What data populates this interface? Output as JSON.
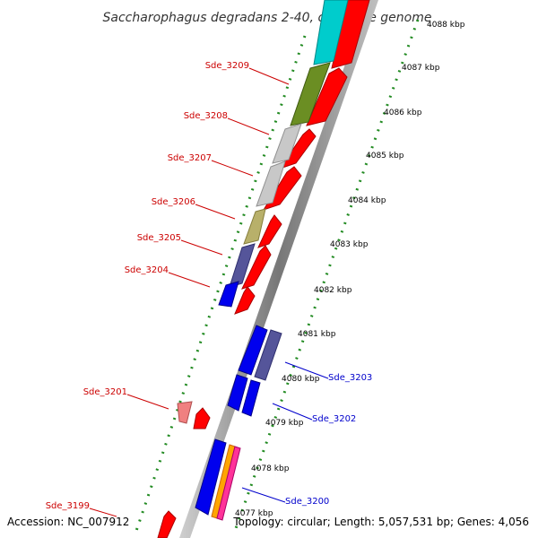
{
  "title": "Saccharophagus degradans 2-40, complete genome",
  "footer": {
    "accession": "Accession: NC_007912",
    "summary": "Topology: circular; Length: 5,057,531 bp; Genes: 4,056"
  },
  "ticks": [
    "4088 kbp",
    "4087 kbp",
    "4086 kbp",
    "4085 kbp",
    "4084 kbp",
    "4083 kbp",
    "4082 kbp",
    "4081 kbp",
    "4080 kbp",
    "4079 kbp",
    "4078 kbp",
    "4077 kbp"
  ],
  "gene_labels": {
    "left": [
      "Sde_3209",
      "Sde_3208",
      "Sde_3207",
      "Sde_3206",
      "Sde_3205",
      "Sde_3204",
      "Sde_3201",
      "Sde_3199"
    ],
    "right": [
      "Sde_3203",
      "Sde_3202",
      "Sde_3200"
    ]
  },
  "colors": {
    "forward_label": "#cc0000",
    "reverse_label": "#0000cc",
    "cds_red": "#ff0000",
    "blue": "#0000ee",
    "slate": "#55559a",
    "olive": "#6b8e23",
    "khaki": "#b8b06a",
    "grey": "#c8c8c8",
    "cyan": "#00cccc",
    "pink": "#f08080",
    "tick_green": "#228b22"
  }
}
